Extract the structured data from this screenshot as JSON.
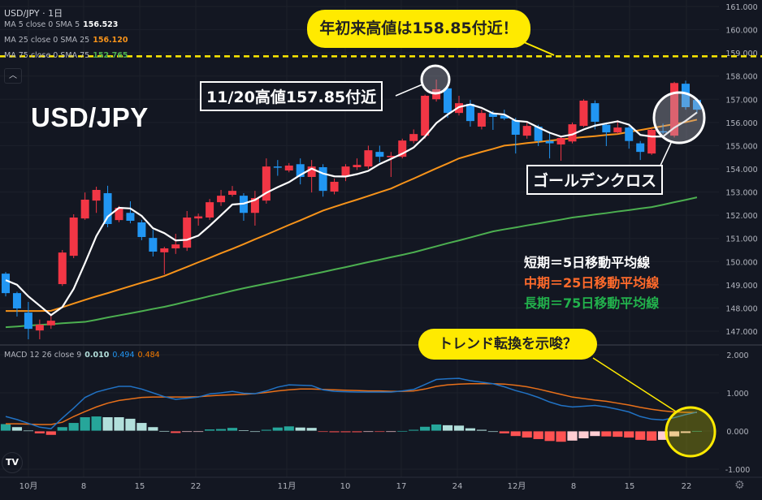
{
  "symbol": {
    "pair": "USD/JPY",
    "interval": "1日"
  },
  "indicators": [
    {
      "label": "MA 5 close 0 SMA 5",
      "value": "156.523",
      "color": "#ffffff"
    },
    {
      "label": "MA 25 close 0 SMA 25",
      "value": "156.120",
      "color": "#f7931a"
    },
    {
      "label": "MA 75 close 0 SMA 75",
      "value": "152.765",
      "color": "#4caf50"
    }
  ],
  "macd_legend": {
    "label": "MACD 12 26 close 9",
    "hist": "0.010",
    "macd": "0.494",
    "signal": "0.484",
    "hist_color": "#b2dfdb",
    "macd_color": "#2196f3",
    "signal_color": "#f57c00"
  },
  "headline": "USD/JPY",
  "annotations": {
    "ytd_high": "年初来高値は158.85付近！",
    "ytd_high_price": 158.85,
    "nov20_high": "11/20高値157.85付近",
    "golden_cross": "ゴールデンクロス",
    "trend_change": "トレンド転換を示唆？",
    "ma_short": "短期＝5日移動平均線",
    "ma_mid": "中期＝25日移動平均線",
    "ma_long": "長期＝75日移動平均線",
    "ma_mid_color": "#ff6a2b",
    "ma_long_color": "#22b14c",
    "highlight_color": "#ffea00"
  },
  "colors": {
    "up": "#f23645",
    "down": "#2196f3",
    "background": "#131722"
  },
  "price_axis": [
    "161.000",
    "160.000",
    "159.000",
    "158.000",
    "157.000",
    "156.000",
    "155.000",
    "154.000",
    "153.000",
    "152.000",
    "151.000",
    "150.000",
    "149.000",
    "148.000",
    "147.000"
  ],
  "macd_axis": [
    "2.000",
    "1.000",
    "0.000",
    "-1.000"
  ],
  "time_axis": [
    "10月",
    "8",
    "15",
    "22",
    "11月",
    "10",
    "17",
    "24",
    "12月",
    "8",
    "15",
    "22"
  ],
  "chart_data": {
    "type": "candlestick",
    "ohlc": [
      [
        149.48,
        149.55,
        148.5,
        148.64
      ],
      [
        148.64,
        148.7,
        147.63,
        147.98
      ],
      [
        147.8,
        148.26,
        146.65,
        147.1
      ],
      [
        147.03,
        147.5,
        146.65,
        147.28
      ],
      [
        147.25,
        147.66,
        147.1,
        147.45
      ],
      [
        149.03,
        150.5,
        148.95,
        150.39
      ],
      [
        150.25,
        152.04,
        150.15,
        151.9
      ],
      [
        151.86,
        152.98,
        151.8,
        152.67
      ],
      [
        152.63,
        153.23,
        152.1,
        153.09
      ],
      [
        152.95,
        153.27,
        151.48,
        151.62
      ],
      [
        151.79,
        152.4,
        151.7,
        152.32
      ],
      [
        152.1,
        152.6,
        151.65,
        151.76
      ],
      [
        151.69,
        151.8,
        150.92,
        151.06
      ],
      [
        151.02,
        151.37,
        150.22,
        150.43
      ],
      [
        150.4,
        150.64,
        149.45,
        150.57
      ],
      [
        150.57,
        151.2,
        150.33,
        150.74
      ],
      [
        150.6,
        152.18,
        150.46,
        151.9
      ],
      [
        151.86,
        152.07,
        151.55,
        151.95
      ],
      [
        151.9,
        152.7,
        151.8,
        152.56
      ],
      [
        152.56,
        153.09,
        152.4,
        152.84
      ],
      [
        152.88,
        153.26,
        152.8,
        153.05
      ],
      [
        152.84,
        152.95,
        151.76,
        152.1
      ],
      [
        152.1,
        153.05,
        151.55,
        152.74
      ],
      [
        152.63,
        154.45,
        152.5,
        154.1
      ],
      [
        154.1,
        154.38,
        153.7,
        154.05
      ],
      [
        153.93,
        154.25,
        153.85,
        154.14
      ],
      [
        154.2,
        154.45,
        153.33,
        153.65
      ],
      [
        153.65,
        154.38,
        152.98,
        154.1
      ],
      [
        154.07,
        154.2,
        152.8,
        153.05
      ],
      [
        153.02,
        153.58,
        152.9,
        153.44
      ],
      [
        153.7,
        154.2,
        153.47,
        154.1
      ],
      [
        154.07,
        154.45,
        153.95,
        154.17
      ],
      [
        154.1,
        155.0,
        154.0,
        154.8
      ],
      [
        154.73,
        155.0,
        154.28,
        154.52
      ],
      [
        154.5,
        154.73,
        153.65,
        154.56
      ],
      [
        154.52,
        155.3,
        154.45,
        155.22
      ],
      [
        155.2,
        155.7,
        155.1,
        155.5
      ],
      [
        155.43,
        157.2,
        155.3,
        157.15
      ],
      [
        157.0,
        157.85,
        156.9,
        157.43
      ],
      [
        157.47,
        157.5,
        156.2,
        156.41
      ],
      [
        156.41,
        157.15,
        156.3,
        156.83
      ],
      [
        156.8,
        156.97,
        155.82,
        156.06
      ],
      [
        155.82,
        156.55,
        155.7,
        156.41
      ],
      [
        156.4,
        156.5,
        155.68,
        156.24
      ],
      [
        156.3,
        156.55,
        156.1,
        156.17
      ],
      [
        156.1,
        156.2,
        154.66,
        155.47
      ],
      [
        155.43,
        156.0,
        155.3,
        155.85
      ],
      [
        155.82,
        155.9,
        154.98,
        155.2
      ],
      [
        155.2,
        155.52,
        154.45,
        155.1
      ],
      [
        155.05,
        155.4,
        154.35,
        155.33
      ],
      [
        155.18,
        156.0,
        155.1,
        155.92
      ],
      [
        155.85,
        157.0,
        155.8,
        156.94
      ],
      [
        156.83,
        156.95,
        155.7,
        156.03
      ],
      [
        155.9,
        156.0,
        154.98,
        155.57
      ],
      [
        155.57,
        156.1,
        155.5,
        155.78
      ],
      [
        155.78,
        155.85,
        154.87,
        155.2
      ],
      [
        155.1,
        155.2,
        154.38,
        154.73
      ],
      [
        154.66,
        155.75,
        154.6,
        155.68
      ],
      [
        155.62,
        155.95,
        155.5,
        155.57
      ],
      [
        155.43,
        157.75,
        155.35,
        157.7
      ],
      [
        157.67,
        157.8,
        156.55,
        156.66
      ],
      [
        156.97,
        157.05,
        156.4,
        156.55
      ]
    ],
    "sma25": [
      147.87,
      147.87,
      147.87,
      147.87,
      147.88,
      148.03,
      148.19,
      148.35,
      148.5,
      148.64,
      148.79,
      148.94,
      149.09,
      149.23,
      149.38,
      149.58,
      149.77,
      149.97,
      150.16,
      150.36,
      150.55,
      150.75,
      150.96,
      151.16,
      151.37,
      151.58,
      151.78,
      151.99,
      152.2,
      152.36,
      152.52,
      152.67,
      152.83,
      152.99,
      153.15,
      153.37,
      153.58,
      153.8,
      154.02,
      154.23,
      154.45,
      154.59,
      154.73,
      154.86,
      155.0,
      155.05,
      155.11,
      155.16,
      155.21,
      155.27,
      155.32,
      155.37,
      155.41,
      155.46,
      155.5,
      155.59,
      155.67,
      155.76,
      155.84,
      155.93,
      156.01,
      156.12
    ],
    "sma75": [
      147.17,
      147.2,
      147.24,
      147.27,
      147.3,
      147.34,
      147.37,
      147.4,
      147.49,
      147.59,
      147.68,
      147.77,
      147.86,
      147.96,
      148.05,
      148.16,
      148.28,
      148.39,
      148.51,
      148.62,
      148.74,
      148.85,
      148.95,
      149.05,
      149.15,
      149.25,
      149.35,
      149.45,
      149.55,
      149.66,
      149.76,
      149.87,
      149.98,
      150.08,
      150.19,
      150.29,
      150.4,
      150.53,
      150.66,
      150.79,
      150.91,
      151.04,
      151.17,
      151.3,
      151.39,
      151.47,
      151.56,
      151.64,
      151.73,
      151.81,
      151.9,
      151.96,
      152.03,
      152.09,
      152.16,
      152.22,
      152.29,
      152.35,
      152.45,
      152.56,
      152.66,
      152.77
    ],
    "sma5_first": [
      149.2,
      149.0,
      148.5,
      148.1,
      147.55
    ],
    "macd": [
      0.38,
      0.3,
      0.2,
      0.1,
      0.06,
      0.34,
      0.6,
      0.88,
      1.02,
      1.1,
      1.17,
      1.17,
      1.1,
      1.0,
      0.9,
      0.83,
      0.86,
      0.89,
      0.97,
      1.0,
      1.04,
      0.99,
      0.98,
      1.05,
      1.15,
      1.21,
      1.2,
      1.19,
      1.08,
      1.04,
      1.03,
      1.02,
      1.02,
      1.02,
      1.02,
      1.05,
      1.09,
      1.22,
      1.35,
      1.37,
      1.38,
      1.32,
      1.28,
      1.24,
      1.16,
      1.06,
      0.98,
      0.88,
      0.76,
      0.67,
      0.63,
      0.65,
      0.67,
      0.63,
      0.57,
      0.5,
      0.38,
      0.31,
      0.29,
      0.35,
      0.43,
      0.494
    ],
    "signal": [
      0.19,
      0.19,
      0.18,
      0.17,
      0.17,
      0.23,
      0.38,
      0.51,
      0.63,
      0.73,
      0.8,
      0.84,
      0.88,
      0.89,
      0.89,
      0.89,
      0.89,
      0.9,
      0.92,
      0.94,
      0.95,
      0.96,
      0.98,
      1.01,
      1.05,
      1.08,
      1.1,
      1.1,
      1.09,
      1.08,
      1.07,
      1.06,
      1.05,
      1.05,
      1.04,
      1.04,
      1.05,
      1.1,
      1.17,
      1.21,
      1.23,
      1.24,
      1.24,
      1.24,
      1.23,
      1.2,
      1.16,
      1.1,
      1.03,
      0.96,
      0.89,
      0.85,
      0.81,
      0.78,
      0.73,
      0.68,
      0.62,
      0.57,
      0.53,
      0.5,
      0.49,
      0.484
    ],
    "price_range": [
      146.5,
      161.3
    ],
    "macd_range": [
      -1.0,
      2.0
    ],
    "grid": true
  }
}
